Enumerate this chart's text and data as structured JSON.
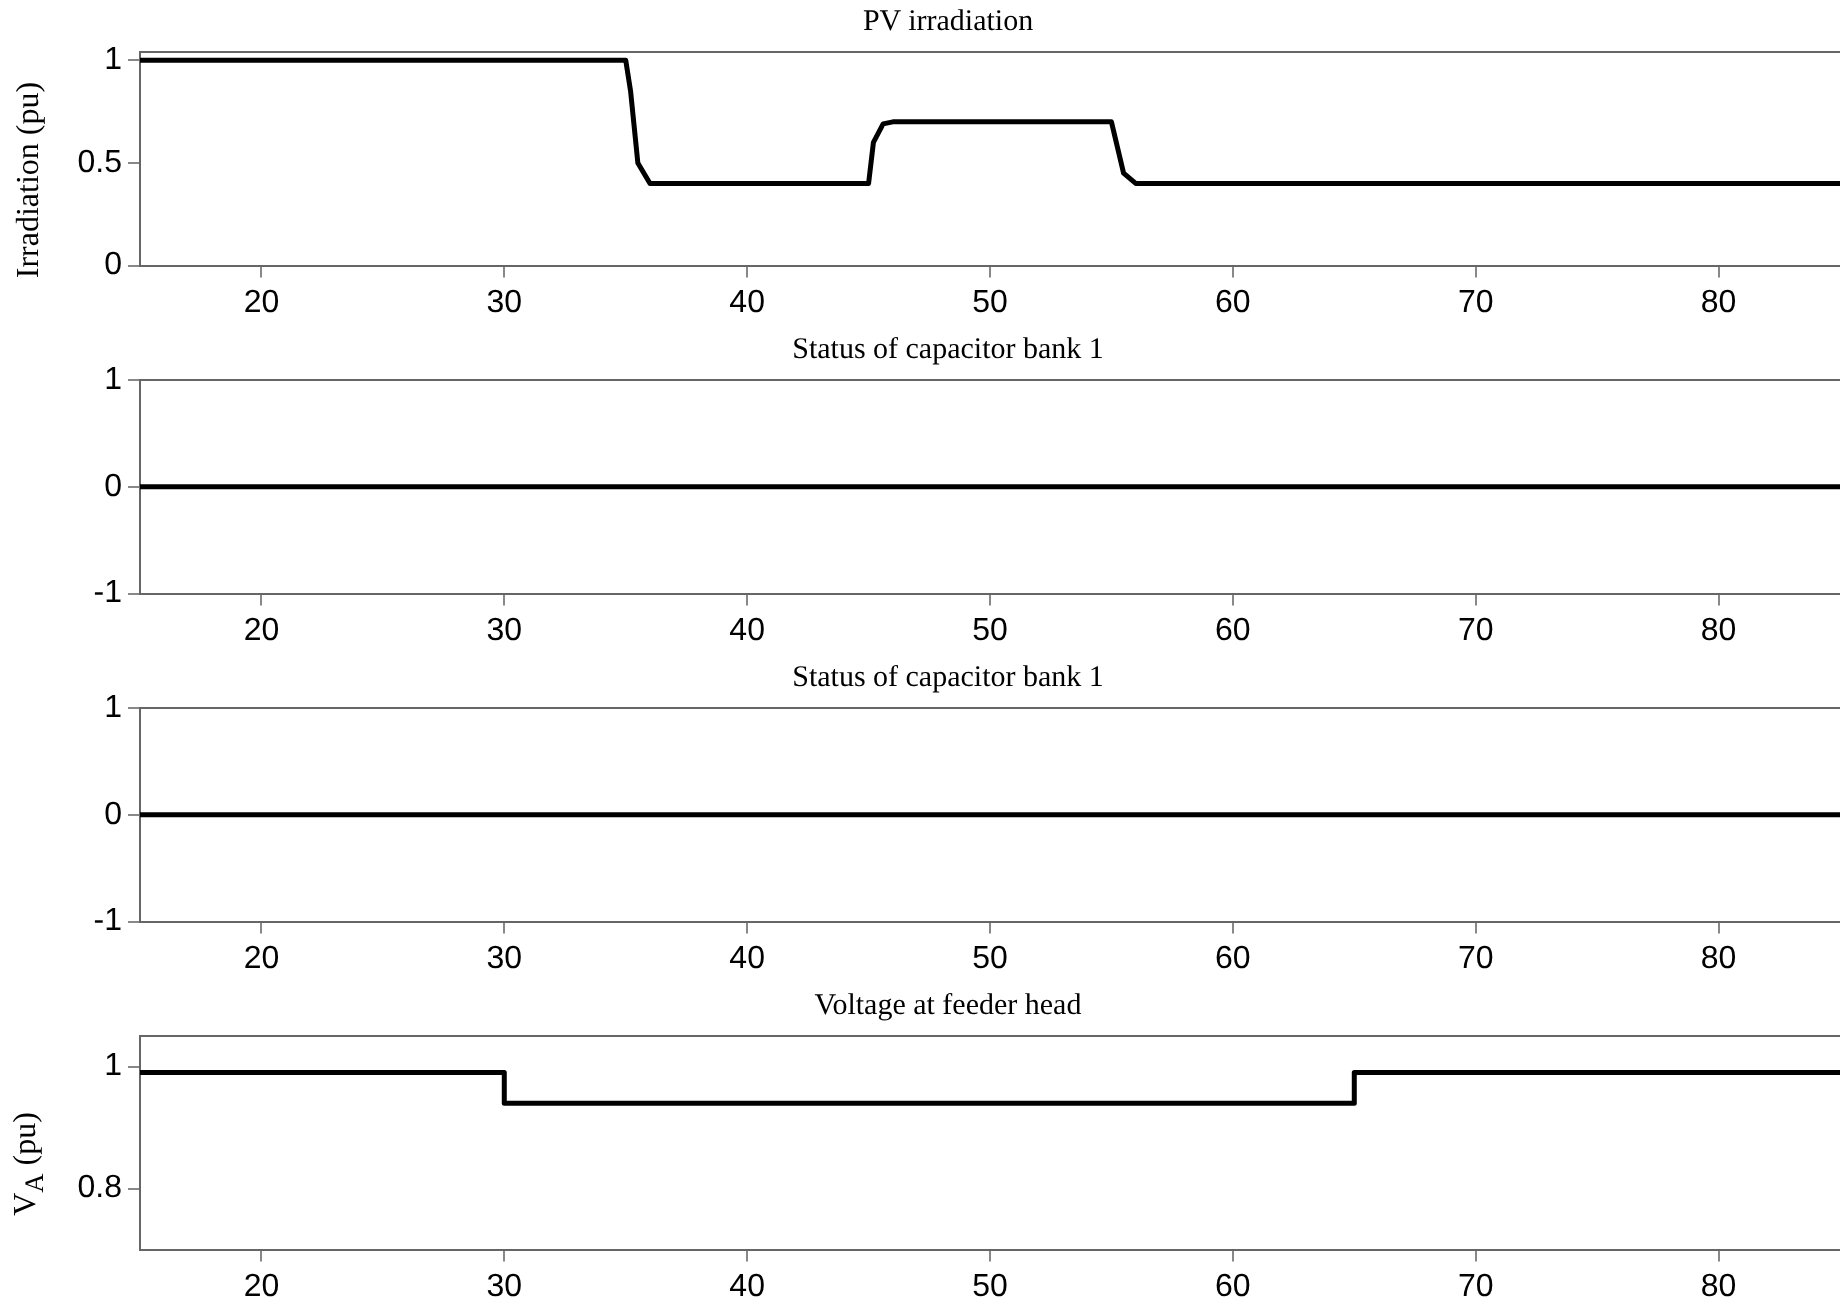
{
  "chart_data": [
    {
      "type": "line",
      "title": "PV irradiation",
      "ylabel": "Irradiation (pu)",
      "marker": "none",
      "line_style": "solid",
      "x": [
        15,
        35,
        35.2,
        35.5,
        36,
        45,
        45.2,
        45.6,
        46,
        55,
        55.2,
        55.5,
        56,
        85
      ],
      "series": [
        {
          "color": "#000000",
          "values": [
            1,
            1,
            0.85,
            0.5,
            0.4,
            0.4,
            0.6,
            0.69,
            0.7,
            0.7,
            0.6,
            0.45,
            0.4,
            0.4
          ]
        }
      ],
      "xlim": [
        15,
        85
      ],
      "xticks": [
        20,
        30,
        40,
        50,
        60,
        70,
        80
      ],
      "ylim": [
        0,
        1.04
      ],
      "yticks": [
        0,
        0.5,
        1
      ]
    },
    {
      "type": "line",
      "title": "Status of capacitor bank 1",
      "marker": "none",
      "line_style": "solid",
      "x": [
        15,
        85
      ],
      "series": [
        {
          "color": "#000000",
          "values": [
            0,
            0
          ]
        }
      ],
      "xlim": [
        15,
        85
      ],
      "xticks": [
        20,
        30,
        40,
        50,
        60,
        70,
        80
      ],
      "ylim": [
        -1,
        1
      ],
      "yticks": [
        -1,
        0,
        1
      ]
    },
    {
      "type": "line",
      "title": "Status of capacitor bank 1",
      "marker": "none",
      "line_style": "solid",
      "x": [
        15,
        85
      ],
      "series": [
        {
          "color": "#000000",
          "values": [
            0,
            0
          ]
        }
      ],
      "xlim": [
        15,
        85
      ],
      "xticks": [
        20,
        30,
        40,
        50,
        60,
        70,
        80
      ],
      "ylim": [
        -1,
        1
      ],
      "yticks": [
        -1,
        0,
        1
      ]
    },
    {
      "type": "line",
      "title": "Voltage at feeder head",
      "ylabel": "V$_{A}$ (pu)",
      "marker": "none",
      "line_style": "solid",
      "x": [
        15,
        30,
        30,
        65,
        65,
        85
      ],
      "series": [
        {
          "color": "#000000",
          "values": [
            0.99,
            0.99,
            0.94,
            0.94,
            0.99,
            0.99
          ]
        }
      ],
      "xlim": [
        15,
        85
      ],
      "xticks": [
        20,
        30,
        40,
        50,
        60,
        70,
        80
      ],
      "ylim": [
        0.7,
        1.05
      ],
      "yticks": [
        0.8,
        1
      ]
    }
  ]
}
